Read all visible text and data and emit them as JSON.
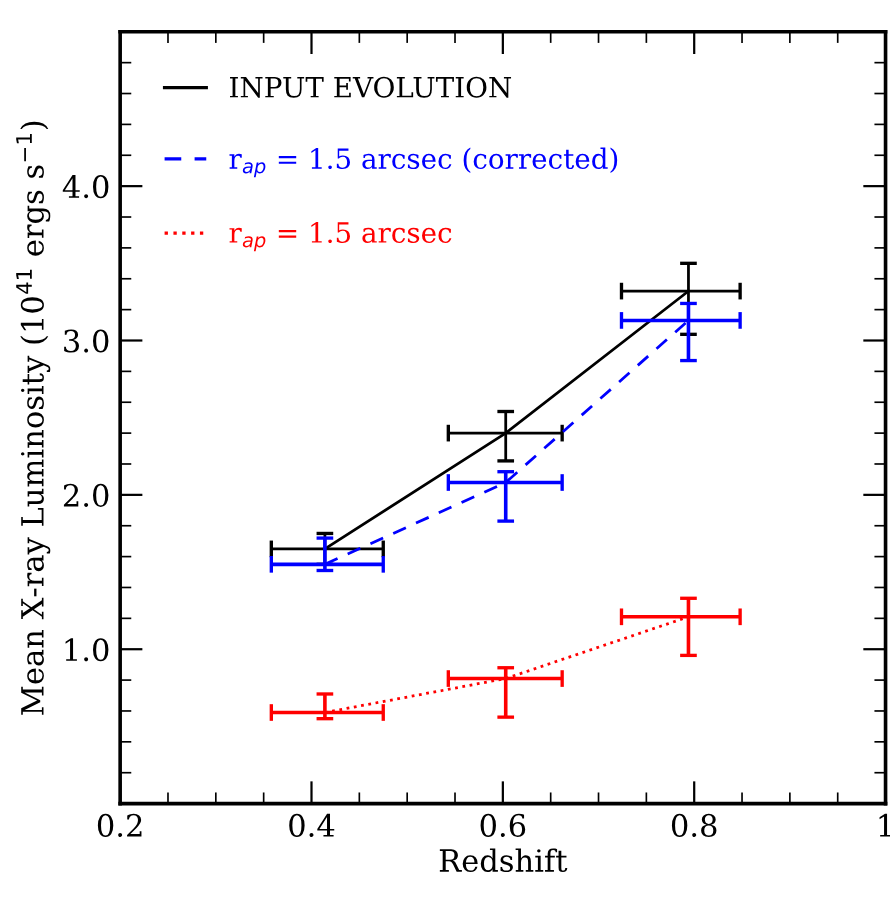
{
  "chart_data": {
    "type": "line",
    "xlabel": "Redshift",
    "ylabel": "Mean X-ray Luminosity (10$^{41}$ ergs s$^{−1}$)",
    "xlim": [
      0.2,
      1.0
    ],
    "xticks": [
      0.2,
      0.4,
      0.6,
      0.8,
      {
        "value": 1.0,
        "label": "1"
      }
    ],
    "ylim": [
      0,
      5
    ],
    "yticks": [
      {
        "value": 1,
        "label": "1.0"
      },
      {
        "value": 2,
        "label": "2.0"
      },
      {
        "value": 3,
        "label": "3.0"
      },
      {
        "value": 4,
        "label": "4.0"
      }
    ],
    "grid": false,
    "legend": "top left",
    "marker": "none",
    "series": [
      {
        "name": "INPUT EVOLUTION",
        "color": "#000000",
        "line_style": "solid",
        "x": [
          0.414,
          0.603,
          0.794
        ],
        "values": [
          1.65,
          2.4,
          3.32
        ],
        "errors": [
          [
            1.55,
            1.75
          ],
          [
            2.22,
            2.54
          ],
          [
            3.04,
            3.5
          ]
        ],
        "xerrors": [
          [
            0.358,
            0.475
          ],
          [
            0.543,
            0.662
          ],
          [
            0.724,
            0.848
          ]
        ]
      },
      {
        "name": "r$_{ap}$ = 1.5 arcsec (corrected)",
        "color": "#0000ff",
        "line_style": "dashed",
        "x": [
          0.414,
          0.603,
          0.794
        ],
        "values": [
          1.55,
          2.08,
          3.13
        ],
        "errors": [
          [
            1.51,
            1.72
          ],
          [
            1.83,
            2.15
          ],
          [
            2.87,
            3.24
          ]
        ],
        "xerrors": [
          [
            0.358,
            0.475
          ],
          [
            0.543,
            0.662
          ],
          [
            0.724,
            0.848
          ]
        ]
      },
      {
        "name": "r$_{ap}$ = 1.5 arcsec",
        "color": "#ff0000",
        "line_style": "dotted",
        "x": [
          0.414,
          0.603,
          0.794
        ],
        "values": [
          0.59,
          0.81,
          1.21
        ],
        "errors": [
          [
            0.55,
            0.71
          ],
          [
            0.56,
            0.88
          ],
          [
            0.96,
            1.33
          ]
        ],
        "xerrors": [
          [
            0.358,
            0.475
          ],
          [
            0.543,
            0.662
          ],
          [
            0.724,
            0.848
          ]
        ]
      }
    ]
  }
}
